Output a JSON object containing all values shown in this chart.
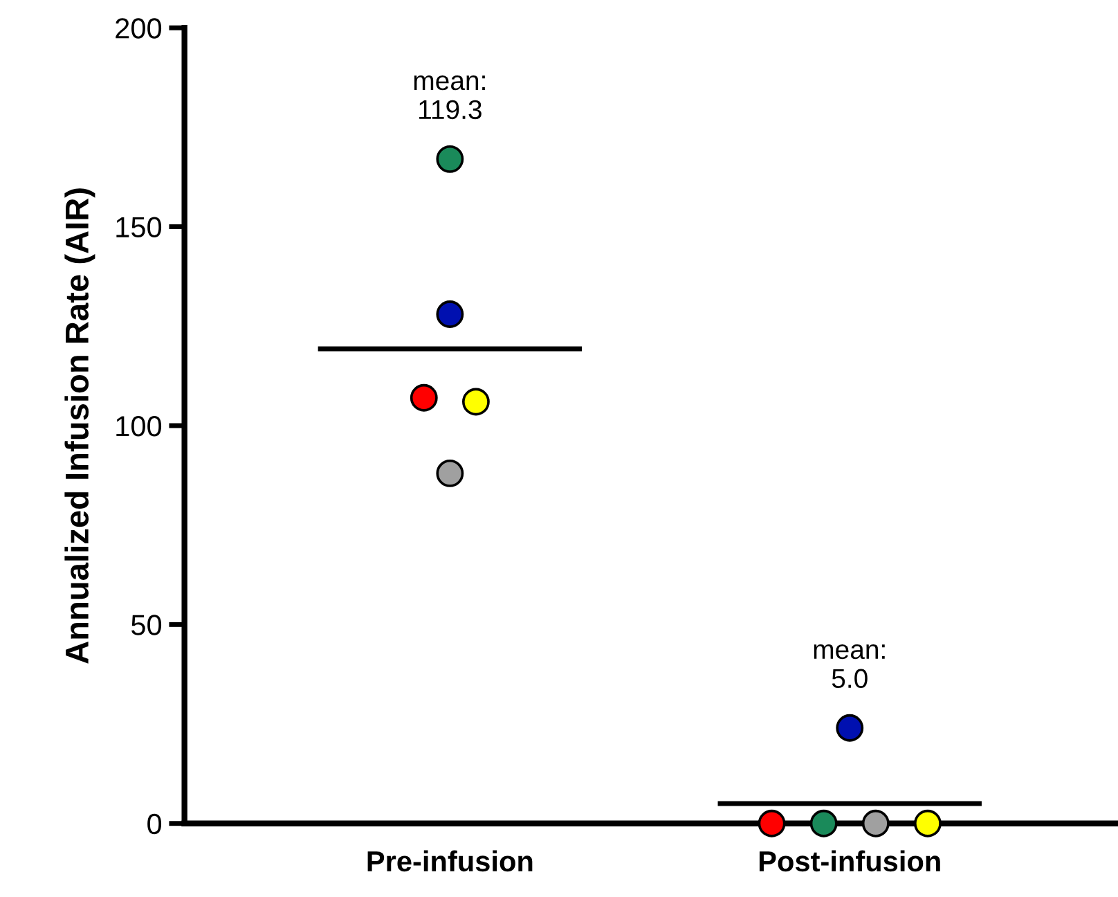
{
  "chart_data": {
    "type": "scatter",
    "ylabel": "Annualized Infusion Rate (AIR)",
    "categories": [
      "Pre-infusion",
      "Post-infusion"
    ],
    "ylim": [
      0,
      200
    ],
    "yticks": [
      0,
      50,
      100,
      150,
      200
    ],
    "grid": false,
    "marker": "circle",
    "series": [
      {
        "color": "#ff0000",
        "values": [
          107,
          0
        ]
      },
      {
        "color": "#1a8a5a",
        "values": [
          167,
          0
        ]
      },
      {
        "color": "#a0a0a0",
        "values": [
          88,
          0
        ]
      },
      {
        "color": "#ffff00",
        "values": [
          106,
          0
        ]
      },
      {
        "color": "#0010b0",
        "values": [
          128,
          24
        ]
      }
    ],
    "ref_lines": [
      {
        "axis": "y",
        "value": 119.3,
        "color": "#000000"
      },
      {
        "axis": "y",
        "value": 5.0,
        "color": "#000000"
      }
    ],
    "annotations": [
      "mean:\n119.3",
      "mean:\n5.0"
    ]
  }
}
